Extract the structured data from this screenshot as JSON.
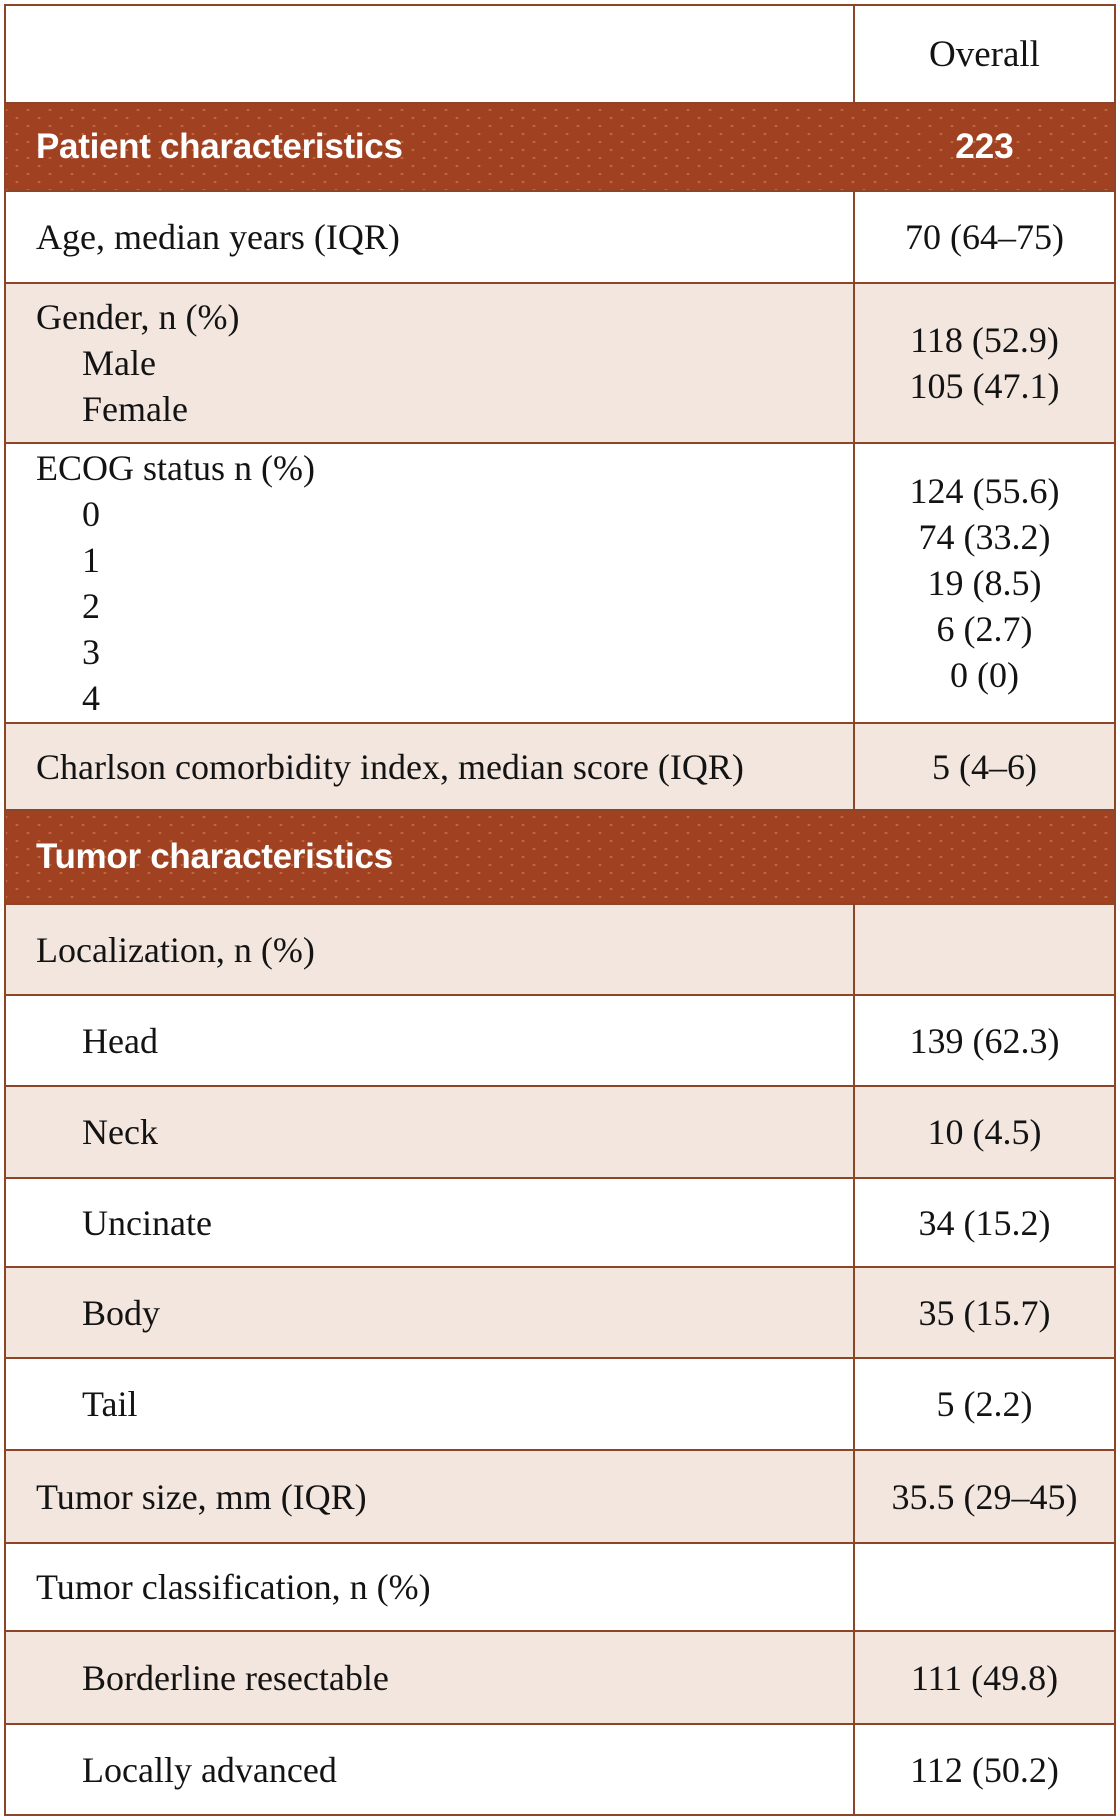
{
  "table": {
    "column_header": {
      "label": "",
      "overall_label": "Overall"
    },
    "rows": [
      {
        "type": "section",
        "label": "Patient characteristics",
        "value": "223"
      },
      {
        "type": "data",
        "bg": "white",
        "lines": [
          {
            "label": "Age, median years (IQR)",
            "value": "70 (64–75)",
            "indent": false
          }
        ]
      },
      {
        "type": "data",
        "bg": "beige",
        "lines": [
          {
            "label": "Gender, n (%)",
            "value": "",
            "indent": false
          },
          {
            "label": "Male",
            "value": "118 (52.9)",
            "indent": true
          },
          {
            "label": "Female",
            "value": "105 (47.1)",
            "indent": true
          }
        ]
      },
      {
        "type": "data",
        "bg": "white",
        "lines": [
          {
            "label": "ECOG status n (%)",
            "value": "",
            "indent": false
          },
          {
            "label": "0",
            "value": "124 (55.6)",
            "indent": true
          },
          {
            "label": "1",
            "value": "74 (33.2)",
            "indent": true
          },
          {
            "label": "2",
            "value": "19 (8.5)",
            "indent": true
          },
          {
            "label": "3",
            "value": "6 (2.7)",
            "indent": true
          },
          {
            "label": "4",
            "value": "0 (0)",
            "indent": true
          }
        ]
      },
      {
        "type": "data",
        "bg": "beige",
        "lines": [
          {
            "label": "Charlson comorbidity index, median score (IQR)",
            "value": "5 (4–6)",
            "indent": false
          }
        ]
      },
      {
        "type": "section",
        "label": "Tumor characteristics",
        "value": ""
      },
      {
        "type": "data",
        "bg": "beige",
        "lines": [
          {
            "label": "Localization, n (%)",
            "value": "",
            "indent": false
          }
        ]
      },
      {
        "type": "data",
        "bg": "white",
        "lines": [
          {
            "label": "Head",
            "value": "139 (62.3)",
            "indent": true
          }
        ]
      },
      {
        "type": "data",
        "bg": "beige",
        "lines": [
          {
            "label": "Neck",
            "value": "10 (4.5)",
            "indent": true
          }
        ]
      },
      {
        "type": "data",
        "bg": "white",
        "lines": [
          {
            "label": "Uncinate",
            "value": "34 (15.2)",
            "indent": true
          }
        ]
      },
      {
        "type": "data",
        "bg": "beige",
        "lines": [
          {
            "label": "Body",
            "value": "35 (15.7)",
            "indent": true
          }
        ]
      },
      {
        "type": "data",
        "bg": "white",
        "lines": [
          {
            "label": "Tail",
            "value": "5 (2.2)",
            "indent": true
          }
        ]
      },
      {
        "type": "data",
        "bg": "beige",
        "lines": [
          {
            "label": "Tumor size, mm (IQR)",
            "value": "35.5 (29–45)",
            "indent": false
          }
        ]
      },
      {
        "type": "data",
        "bg": "white",
        "lines": [
          {
            "label": "Tumor classification, n (%)",
            "value": "",
            "indent": false
          }
        ]
      },
      {
        "type": "data",
        "bg": "beige",
        "lines": [
          {
            "label": "Borderline resectable",
            "value": "111 (49.8)",
            "indent": true
          }
        ]
      },
      {
        "type": "data",
        "bg": "white",
        "lines": [
          {
            "label": "Locally advanced",
            "value": "112 (50.2)",
            "indent": true
          }
        ]
      }
    ],
    "colors": {
      "section_band": "#a04122",
      "row_beige": "#f2e6df",
      "rule_line": "#8d4527",
      "text": "#131313",
      "section_text": "#ffffff"
    }
  }
}
